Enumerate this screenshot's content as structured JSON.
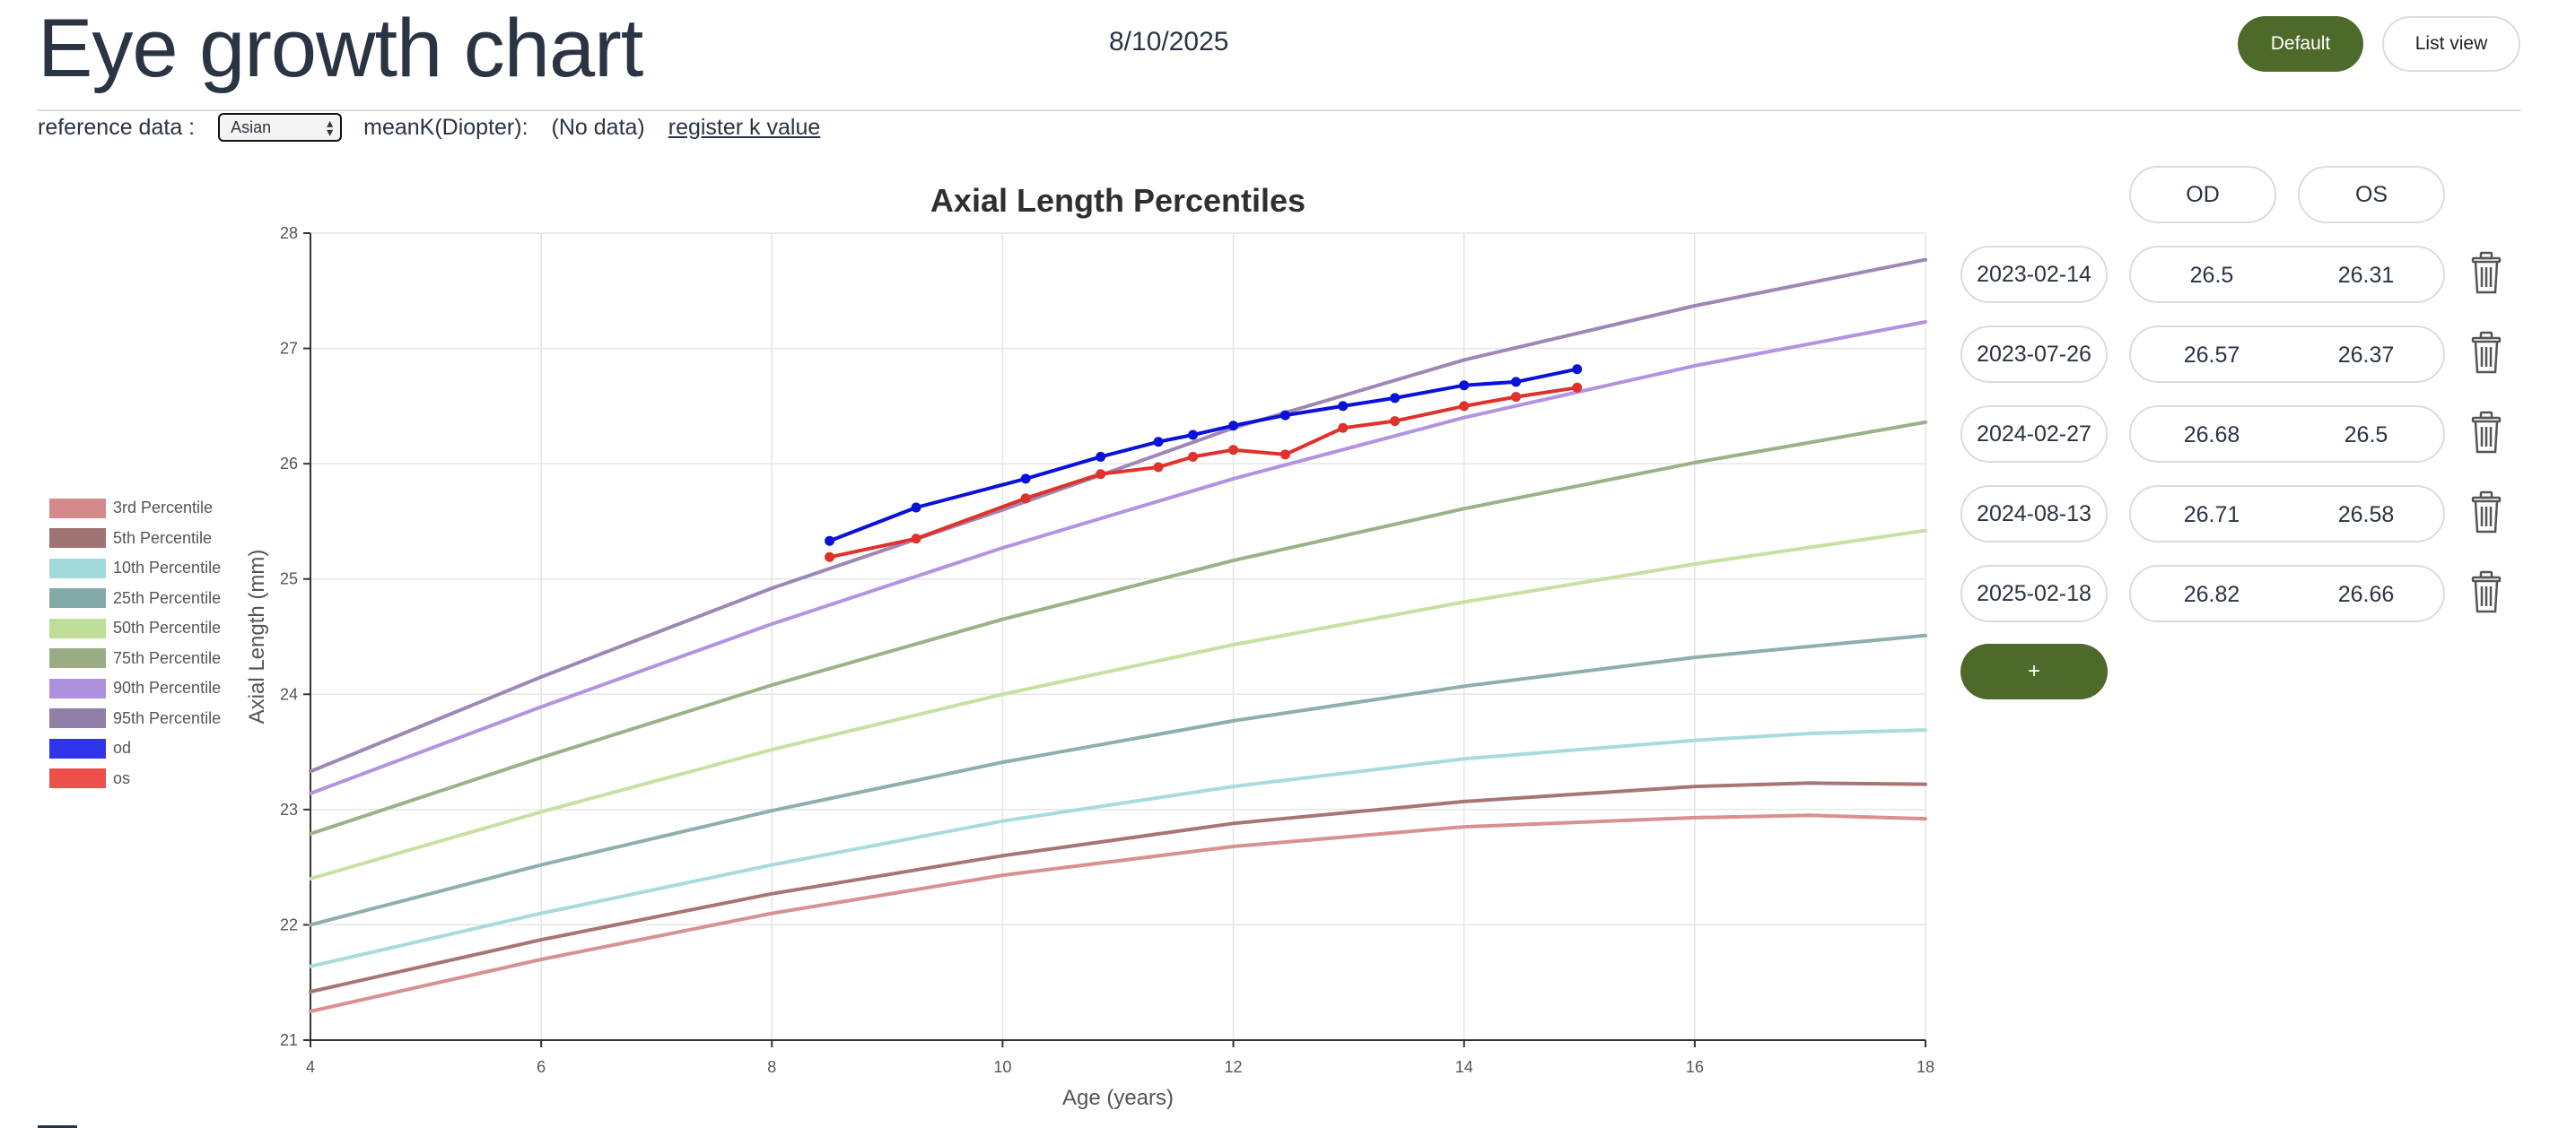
{
  "page": {
    "title": "Eye growth chart",
    "date": "8/10/2025"
  },
  "view_buttons": {
    "default_label": "Default",
    "list_label": "List view"
  },
  "reference": {
    "label": "reference data :",
    "selected": "Asian",
    "meank_label": "meanK(Diopter):",
    "meank_value": "(No data)",
    "register_link": "register k value"
  },
  "records": {
    "col_od": "OD",
    "col_os": "OS",
    "rows": [
      {
        "date": "2023-02-14",
        "od": "26.5",
        "os": "26.31"
      },
      {
        "date": "2023-07-26",
        "od": "26.57",
        "os": "26.37"
      },
      {
        "date": "2024-02-27",
        "od": "26.68",
        "os": "26.5"
      },
      {
        "date": "2024-08-13",
        "od": "26.71",
        "os": "26.58"
      },
      {
        "date": "2025-02-18",
        "od": "26.82",
        "os": "26.66"
      }
    ],
    "add_label": "+",
    "delete_icon": "trash-icon"
  },
  "chart_data": {
    "type": "line",
    "title": "Axial Length Percentiles",
    "xlabel": "Age (years)",
    "ylabel": "Axial Length (mm)",
    "xlim": [
      4,
      18
    ],
    "ylim": [
      21,
      28
    ],
    "xticks": [
      4,
      6,
      8,
      10,
      12,
      14,
      16,
      18
    ],
    "yticks": [
      21,
      22,
      23,
      24,
      25,
      26,
      27,
      28
    ],
    "grid": true,
    "legend_position": "left",
    "series": [
      {
        "name": "3rd Percentile",
        "color": "#d99090",
        "swatch": "#cc7575",
        "points": [
          [
            4,
            21.25
          ],
          [
            6,
            21.7
          ],
          [
            8,
            22.1
          ],
          [
            10,
            22.43
          ],
          [
            12,
            22.68
          ],
          [
            14,
            22.85
          ],
          [
            16,
            22.93
          ],
          [
            17,
            22.95
          ],
          [
            18,
            22.92
          ]
        ]
      },
      {
        "name": "5th Percentile",
        "color": "#a87575",
        "swatch": "#8e5a5a",
        "points": [
          [
            4,
            21.42
          ],
          [
            6,
            21.87
          ],
          [
            8,
            22.27
          ],
          [
            10,
            22.6
          ],
          [
            12,
            22.88
          ],
          [
            14,
            23.07
          ],
          [
            16,
            23.2
          ],
          [
            17,
            23.23
          ],
          [
            18,
            23.22
          ]
        ]
      },
      {
        "name": "10th Percentile",
        "color": "#a8dcdc",
        "swatch": "#92d2d2",
        "points": [
          [
            4,
            21.64
          ],
          [
            6,
            22.1
          ],
          [
            8,
            22.52
          ],
          [
            10,
            22.9
          ],
          [
            12,
            23.2
          ],
          [
            14,
            23.44
          ],
          [
            16,
            23.6
          ],
          [
            17,
            23.66
          ],
          [
            18,
            23.69
          ]
        ]
      },
      {
        "name": "25th Percentile",
        "color": "#8faeae",
        "swatch": "#6f9a9a",
        "points": [
          [
            4,
            22.0
          ],
          [
            6,
            22.52
          ],
          [
            8,
            22.99
          ],
          [
            10,
            23.41
          ],
          [
            12,
            23.77
          ],
          [
            14,
            24.07
          ],
          [
            16,
            24.32
          ],
          [
            18,
            24.51
          ]
        ]
      },
      {
        "name": "50th Percentile",
        "color": "#c8e0a0",
        "swatch": "#b4d888",
        "points": [
          [
            4,
            22.4
          ],
          [
            6,
            22.98
          ],
          [
            8,
            23.52
          ],
          [
            10,
            24.0
          ],
          [
            12,
            24.43
          ],
          [
            14,
            24.8
          ],
          [
            16,
            25.13
          ],
          [
            18,
            25.42
          ]
        ]
      },
      {
        "name": "75th Percentile",
        "color": "#9bb289",
        "swatch": "#879e6e",
        "points": [
          [
            4,
            22.79
          ],
          [
            6,
            23.45
          ],
          [
            8,
            24.08
          ],
          [
            10,
            24.65
          ],
          [
            12,
            25.16
          ],
          [
            14,
            25.61
          ],
          [
            16,
            26.01
          ],
          [
            18,
            26.36
          ]
        ]
      },
      {
        "name": "90th Percentile",
        "color": "#b393e0",
        "swatch": "#a07ed8",
        "points": [
          [
            4,
            23.14
          ],
          [
            6,
            23.89
          ],
          [
            8,
            24.61
          ],
          [
            10,
            25.27
          ],
          [
            12,
            25.87
          ],
          [
            14,
            26.4
          ],
          [
            16,
            26.85
          ],
          [
            18,
            27.23
          ]
        ]
      },
      {
        "name": "95th Percentile",
        "color": "#9d88b5",
        "swatch": "#7d6898",
        "points": [
          [
            4,
            23.33
          ],
          [
            6,
            24.15
          ],
          [
            8,
            24.92
          ],
          [
            10,
            25.6
          ],
          [
            12,
            26.31
          ],
          [
            14,
            26.9
          ],
          [
            16,
            27.37
          ],
          [
            18,
            27.77
          ]
        ]
      },
      {
        "name": "od",
        "color": "#0a11d8",
        "swatch": "#0a11e8",
        "markers": true,
        "points": [
          [
            8.5,
            25.33
          ],
          [
            9.25,
            25.62
          ],
          [
            10.2,
            25.87
          ],
          [
            10.85,
            26.06
          ],
          [
            11.35,
            26.19
          ],
          [
            11.65,
            26.25
          ],
          [
            12,
            26.33
          ],
          [
            12.45,
            26.42
          ],
          [
            12.95,
            26.5
          ],
          [
            13.4,
            26.57
          ],
          [
            14,
            26.68
          ],
          [
            14.45,
            26.71
          ],
          [
            14.98,
            26.82
          ]
        ]
      },
      {
        "name": "os",
        "color": "#e0322a",
        "swatch": "#e8332a",
        "markers": true,
        "points": [
          [
            8.5,
            25.19
          ],
          [
            9.25,
            25.35
          ],
          [
            10.2,
            25.7
          ],
          [
            10.85,
            25.91
          ],
          [
            11.35,
            25.97
          ],
          [
            11.65,
            26.06
          ],
          [
            12,
            26.12
          ],
          [
            12.45,
            26.08
          ],
          [
            12.95,
            26.31
          ],
          [
            13.4,
            26.37
          ],
          [
            14,
            26.5
          ],
          [
            14.45,
            26.58
          ],
          [
            14.98,
            26.66
          ]
        ]
      }
    ]
  }
}
